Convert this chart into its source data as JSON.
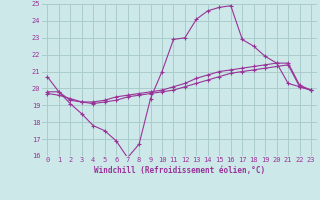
{
  "background_color": "#cce8e8",
  "grid_color": "#aacccc",
  "line_color": "#993399",
  "xlabel": "Windchill (Refroidissement éolien,°C)",
  "xlabel_color": "#993399",
  "tick_color": "#993399",
  "xlim": [
    -0.5,
    23.5
  ],
  "ylim": [
    16,
    25
  ],
  "yticks": [
    16,
    17,
    18,
    19,
    20,
    21,
    22,
    23,
    24,
    25
  ],
  "xticks": [
    0,
    1,
    2,
    3,
    4,
    5,
    6,
    7,
    8,
    9,
    10,
    11,
    12,
    13,
    14,
    15,
    16,
    17,
    18,
    19,
    20,
    21,
    22,
    23
  ],
  "series1_x": [
    0,
    1,
    2,
    3,
    4,
    5,
    6,
    7,
    8,
    9,
    10,
    11,
    12,
    13,
    14,
    15,
    16,
    17,
    18,
    19,
    20,
    21,
    22,
    23
  ],
  "series1_y": [
    20.7,
    19.8,
    19.1,
    18.5,
    17.8,
    17.5,
    16.9,
    15.9,
    16.7,
    19.4,
    21.0,
    22.9,
    23.0,
    24.1,
    24.6,
    24.8,
    24.9,
    22.9,
    22.5,
    21.9,
    21.5,
    20.3,
    20.1,
    19.9
  ],
  "series2_x": [
    0,
    1,
    2,
    3,
    4,
    5,
    6,
    7,
    8,
    9,
    10,
    11,
    12,
    13,
    14,
    15,
    16,
    17,
    18,
    19,
    20,
    21,
    22,
    23
  ],
  "series2_y": [
    19.8,
    19.8,
    19.3,
    19.2,
    19.2,
    19.3,
    19.5,
    19.6,
    19.7,
    19.8,
    19.9,
    20.1,
    20.3,
    20.6,
    20.8,
    21.0,
    21.1,
    21.2,
    21.3,
    21.4,
    21.5,
    21.5,
    20.2,
    19.9
  ],
  "series3_x": [
    0,
    1,
    2,
    3,
    4,
    5,
    6,
    7,
    8,
    9,
    10,
    11,
    12,
    13,
    14,
    15,
    16,
    17,
    18,
    19,
    20,
    21,
    22,
    23
  ],
  "series3_y": [
    19.7,
    19.6,
    19.4,
    19.2,
    19.1,
    19.2,
    19.3,
    19.5,
    19.6,
    19.7,
    19.8,
    19.9,
    20.1,
    20.3,
    20.5,
    20.7,
    20.9,
    21.0,
    21.1,
    21.2,
    21.3,
    21.4,
    20.1,
    19.9
  ]
}
